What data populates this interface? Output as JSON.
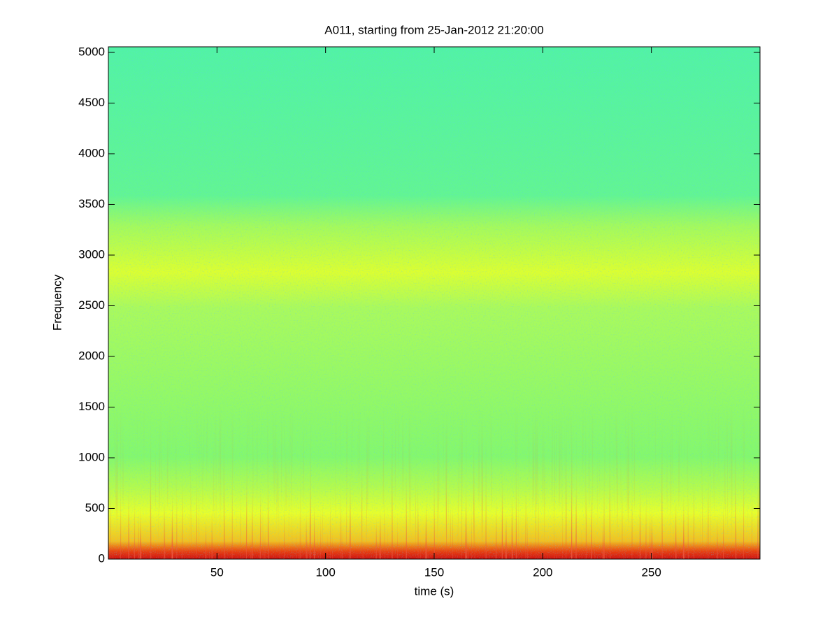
{
  "chart_data": {
    "type": "spectrogram",
    "title": "A011, starting from 25-Jan-2012 21:20:00",
    "x_label": "time (s)",
    "y_label": "Frequency",
    "xlim": [
      0,
      300
    ],
    "ylim": [
      0,
      5055
    ],
    "xticks": [
      50,
      100,
      150,
      200,
      250
    ],
    "yticks": [
      0,
      500,
      1000,
      1500,
      2000,
      2500,
      3000,
      3500,
      4000,
      4500,
      5000
    ]
  }
}
